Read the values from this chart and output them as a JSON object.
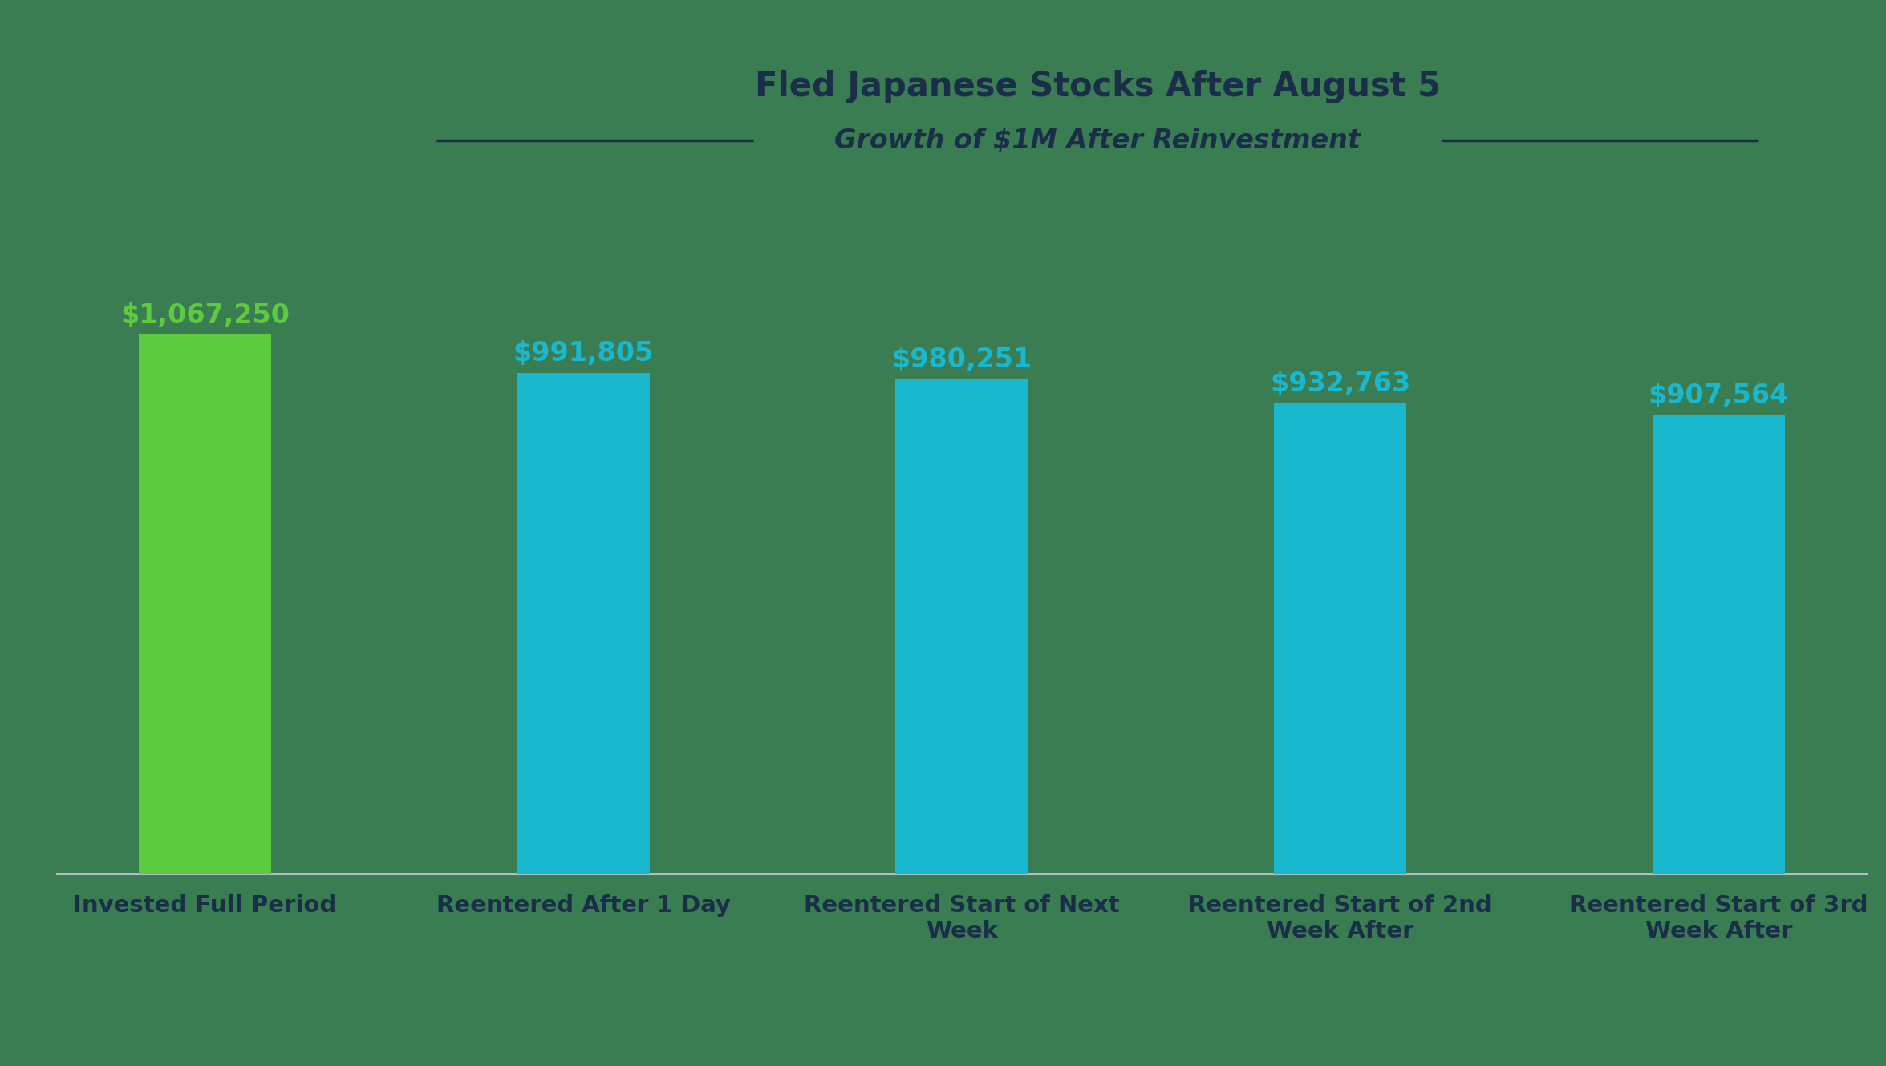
{
  "title": "Fled Japanese Stocks After August 5",
  "subtitle": "Growth of $1M After Reinvestment",
  "categories": [
    "Invested Full Period",
    "Reentered After 1 Day",
    "Reentered Start of Next\nWeek",
    "Reentered Start of 2nd\nWeek After",
    "Reentered Start of 3rd\nWeek After"
  ],
  "values": [
    1067250,
    991805,
    980251,
    932763,
    907564
  ],
  "labels": [
    "$1,067,250",
    "$991,805",
    "$980,251",
    "$932,763",
    "$907,564"
  ],
  "bar_colors": [
    "#5ecb3e",
    "#19b8ce",
    "#19b8ce",
    "#19b8ce",
    "#19b8ce"
  ],
  "label_colors": [
    "#5ecb3e",
    "#19b8ce",
    "#19b8ce",
    "#19b8ce",
    "#19b8ce"
  ],
  "background_color": "#3a7d52",
  "title_color": "#1a2e4a",
  "subtitle_color": "#1a2e4a",
  "tick_label_color": "#1a2e4a",
  "title_fontsize": 30,
  "subtitle_fontsize": 24,
  "label_fontsize": 24,
  "tick_fontsize": 21,
  "ylim": [
    0,
    1350000
  ],
  "bar_width": 0.35
}
